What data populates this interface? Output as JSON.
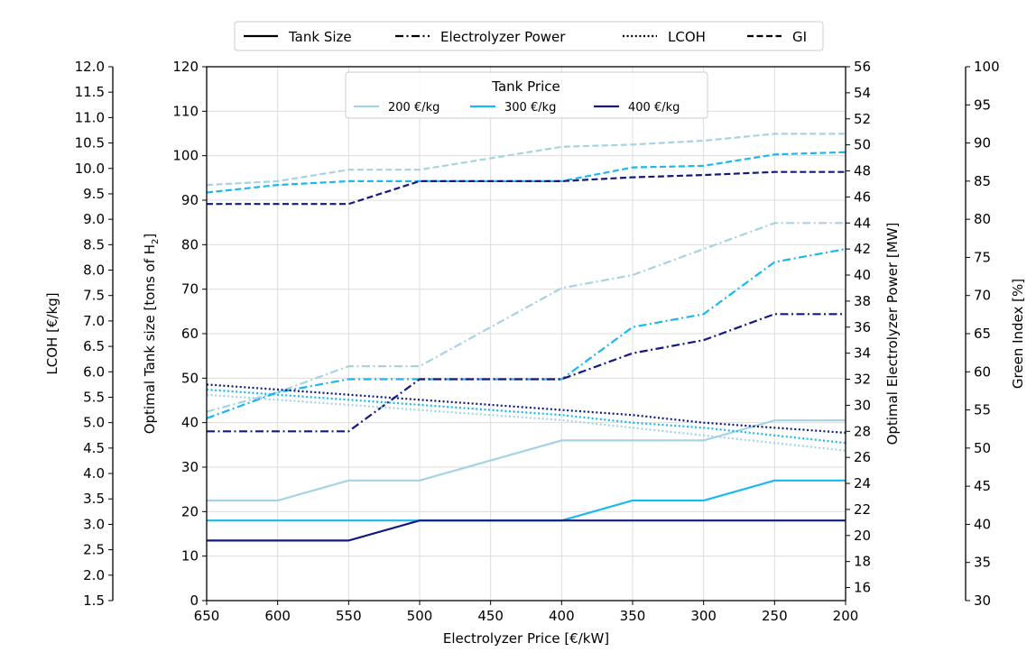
{
  "chart_data": {
    "type": "line",
    "x": [
      650,
      600,
      550,
      500,
      450,
      400,
      350,
      300,
      250,
      200
    ],
    "xlabel": "Electrolyzer Price [€/kW]",
    "x_reversed": true,
    "grid": true,
    "axes": {
      "lcoh": {
        "label": "LCOH [€/kg]",
        "range": [
          1.5,
          12.0
        ],
        "ticks": [
          "1.5",
          "2.0",
          "2.5",
          "3.0",
          "3.5",
          "4.0",
          "4.5",
          "5.0",
          "5.5",
          "6.0",
          "6.5",
          "7.0",
          "7.5",
          "8.0",
          "8.5",
          "9.0",
          "9.5",
          "10.0",
          "10.5",
          "11.0",
          "11.5",
          "12.0"
        ]
      },
      "tank": {
        "label_prefix": "Optimal Tank size [tons of H",
        "label_sub": "2",
        "label_suffix": "]",
        "range": [
          0,
          120
        ],
        "ticks": [
          "0",
          "10",
          "20",
          "30",
          "40",
          "50",
          "60",
          "70",
          "80",
          "90",
          "100",
          "110",
          "120"
        ]
      },
      "power": {
        "label": "Optimal Electrolyzer Power [MW]",
        "range": [
          15,
          56
        ],
        "ticks": [
          "16",
          "18",
          "20",
          "22",
          "24",
          "26",
          "28",
          "30",
          "32",
          "34",
          "36",
          "38",
          "40",
          "42",
          "44",
          "46",
          "48",
          "50",
          "52",
          "54",
          "56"
        ]
      },
      "gi": {
        "label": "Green Index [%]",
        "range": [
          30,
          100
        ],
        "ticks": [
          "30",
          "35",
          "40",
          "45",
          "50",
          "55",
          "60",
          "65",
          "70",
          "75",
          "80",
          "85",
          "90",
          "95",
          "100"
        ]
      }
    },
    "x_ticks": [
      "650",
      "600",
      "550",
      "500",
      "450",
      "400",
      "350",
      "300",
      "250",
      "200"
    ],
    "style_legend": [
      {
        "label": "Tank Size",
        "dash": "solid"
      },
      {
        "label": "Electrolyzer Power",
        "dash": "dashdot"
      },
      {
        "label": "LCOH",
        "dash": "dotted"
      },
      {
        "label": "GI",
        "dash": "dashed"
      }
    ],
    "price_legend": {
      "title": "Tank Price",
      "entries": [
        {
          "label": "200 €/kg",
          "color": "#a6d3e3"
        },
        {
          "label": "300 €/kg",
          "color": "#19b8f0"
        },
        {
          "label": "400 €/kg",
          "color": "#121a80"
        }
      ]
    },
    "series": [
      {
        "metric": "tank",
        "color": "#a6d3e3",
        "dash": "solid",
        "values": [
          22.5,
          22.5,
          27,
          27,
          31.5,
          36,
          36,
          36,
          40.5,
          40.5
        ]
      },
      {
        "metric": "tank",
        "color": "#19b8f0",
        "dash": "solid",
        "values": [
          18,
          18,
          18,
          18,
          18,
          18,
          22.5,
          22.5,
          27,
          27
        ]
      },
      {
        "metric": "tank",
        "color": "#121a80",
        "dash": "solid",
        "values": [
          13.5,
          13.5,
          13.5,
          18,
          18,
          18,
          18,
          18,
          18,
          18
        ]
      },
      {
        "metric": "power",
        "color": "#a6d3e3",
        "dash": "dashdot",
        "values": [
          29.5,
          31,
          33,
          33,
          36,
          39,
          40,
          42,
          44,
          44
        ]
      },
      {
        "metric": "power",
        "color": "#19b8f0",
        "dash": "dashdot",
        "values": [
          29,
          31,
          32,
          32,
          32,
          32,
          36,
          37,
          41,
          42
        ]
      },
      {
        "metric": "power",
        "color": "#121a80",
        "dash": "dashdot",
        "values": [
          28,
          28,
          28,
          32,
          32,
          32,
          34,
          35,
          37,
          37
        ]
      },
      {
        "metric": "lcoh",
        "color": "#a6d3e3",
        "dash": "dotted",
        "values": [
          5.55,
          5.45,
          5.35,
          5.25,
          5.15,
          5.05,
          4.9,
          4.75,
          4.6,
          4.45
        ]
      },
      {
        "metric": "lcoh",
        "color": "#19b8f0",
        "dash": "dotted",
        "values": [
          5.65,
          5.55,
          5.45,
          5.35,
          5.25,
          5.15,
          5.0,
          4.9,
          4.75,
          4.6
        ]
      },
      {
        "metric": "lcoh",
        "color": "#121a80",
        "dash": "dotted",
        "values": [
          5.75,
          5.65,
          5.55,
          5.45,
          5.35,
          5.25,
          5.15,
          5.0,
          4.9,
          4.8
        ]
      },
      {
        "metric": "gi",
        "color": "#a6d3e3",
        "dash": "dashed",
        "values": [
          84.5,
          85.0,
          86.5,
          86.5,
          88.0,
          89.5,
          89.8,
          90.3,
          91.2,
          91.2
        ]
      },
      {
        "metric": "gi",
        "color": "#19b8f0",
        "dash": "dashed",
        "values": [
          83.5,
          84.5,
          85.0,
          85.0,
          85.0,
          85.0,
          86.8,
          87.0,
          88.5,
          88.8
        ]
      },
      {
        "metric": "gi",
        "color": "#121a80",
        "dash": "dashed",
        "values": [
          82.0,
          82.0,
          82.0,
          85.0,
          85.0,
          85.0,
          85.5,
          85.8,
          86.2,
          86.2
        ]
      }
    ]
  }
}
